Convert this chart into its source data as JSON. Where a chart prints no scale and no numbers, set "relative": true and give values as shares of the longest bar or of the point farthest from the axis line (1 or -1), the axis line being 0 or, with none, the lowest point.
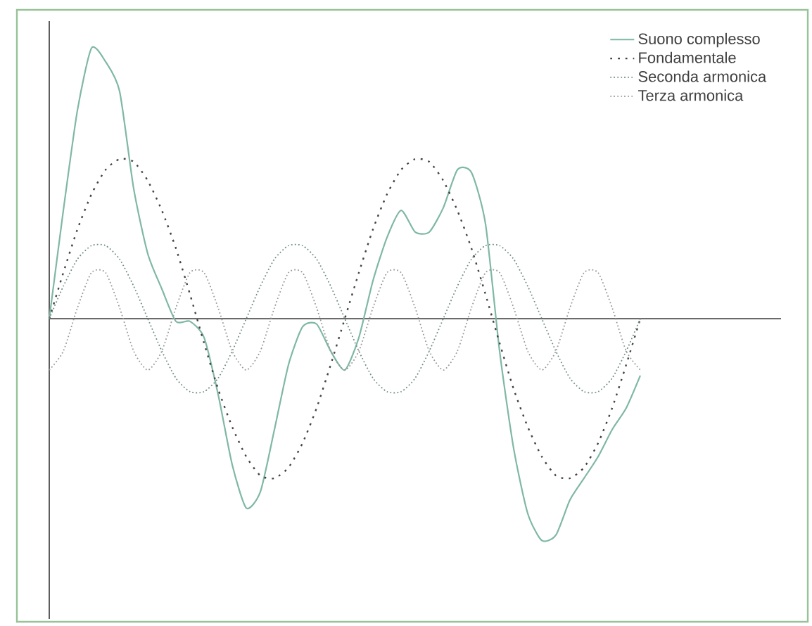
{
  "chart_data": {
    "type": "line",
    "relative": true,
    "legend": "top right",
    "categories": [
      null,
      null,
      null,
      null,
      null,
      null,
      null,
      null,
      null,
      null,
      null,
      null,
      null,
      null,
      null,
      null,
      null,
      null,
      null,
      null,
      null,
      null,
      null,
      null,
      null,
      null,
      null,
      null,
      null,
      null,
      null,
      null,
      null,
      null,
      null,
      null,
      null,
      null,
      null,
      null,
      null,
      null,
      null
    ],
    "series": [
      {
        "name": "Suono complesso",
        "color": "#7fb8a4",
        "line_style": "solid",
        "values": [
          0,
          0.4,
          0.77,
          1,
          0.95,
          0.84,
          0.48,
          0.24,
          0.11,
          -0.01,
          -0.01,
          -0.07,
          -0.28,
          -0.54,
          -0.7,
          -0.64,
          -0.41,
          -0.17,
          -0.03,
          -0.02,
          -0.12,
          -0.19,
          -0.07,
          0.14,
          0.3,
          0.4,
          0.32,
          0.32,
          0.41,
          0.55,
          0.54,
          0.35,
          -0.12,
          -0.48,
          -0.72,
          -0.82,
          -0.8,
          -0.67,
          -0.59,
          -0.51,
          -0.41,
          -0.33,
          -0.21
        ]
      },
      {
        "name": "Fondamentale",
        "color": "#444444",
        "line_style": "dotted",
        "values": [
          0,
          0.17,
          0.33,
          0.46,
          0.55,
          0.59,
          0.58,
          0.51,
          0.4,
          0.26,
          0.09,
          -0.09,
          -0.26,
          -0.4,
          -0.51,
          -0.58,
          -0.59,
          -0.55,
          -0.46,
          -0.33,
          -0.17,
          0,
          0.17,
          0.33,
          0.46,
          0.55,
          0.59,
          0.58,
          0.51,
          0.4,
          0.26,
          0.09,
          -0.09,
          -0.26,
          -0.4,
          -0.51,
          -0.58,
          -0.59,
          -0.55,
          -0.46,
          -0.33,
          -0.17,
          0
        ]
      },
      {
        "name": "Seconda armonica",
        "color": "#6f8f80",
        "line_style": "dotted",
        "values": [
          0,
          0.12,
          0.22,
          0.27,
          0.27,
          0.22,
          0.12,
          0,
          -0.12,
          -0.22,
          -0.27,
          -0.27,
          -0.22,
          -0.12,
          0,
          0.12,
          0.22,
          0.27,
          0.27,
          0.22,
          0.12,
          0,
          -0.12,
          -0.22,
          -0.27,
          -0.27,
          -0.22,
          -0.12,
          0,
          0.12,
          0.22,
          0.27,
          0.27,
          0.22,
          0.12,
          0,
          -0.12,
          -0.22,
          -0.27,
          -0.27,
          -0.22,
          -0.12,
          0
        ]
      },
      {
        "name": "Terza armonica",
        "color": "#999999",
        "line_style": "dotted",
        "values": [
          -0.19,
          -0.12,
          0.04,
          0.17,
          0.17,
          0.04,
          -0.12,
          -0.19,
          -0.12,
          0.04,
          0.17,
          0.17,
          0.04,
          -0.12,
          -0.19,
          -0.12,
          0.04,
          0.17,
          0.17,
          0.04,
          -0.12,
          -0.19,
          -0.12,
          0.04,
          0.17,
          0.17,
          0.04,
          -0.12,
          -0.19,
          -0.12,
          0.04,
          0.17,
          0.17,
          0.04,
          -0.12,
          -0.19,
          -0.12,
          0.04,
          0.17,
          0.17,
          0.04,
          -0.12,
          -0.19
        ]
      }
    ]
  }
}
